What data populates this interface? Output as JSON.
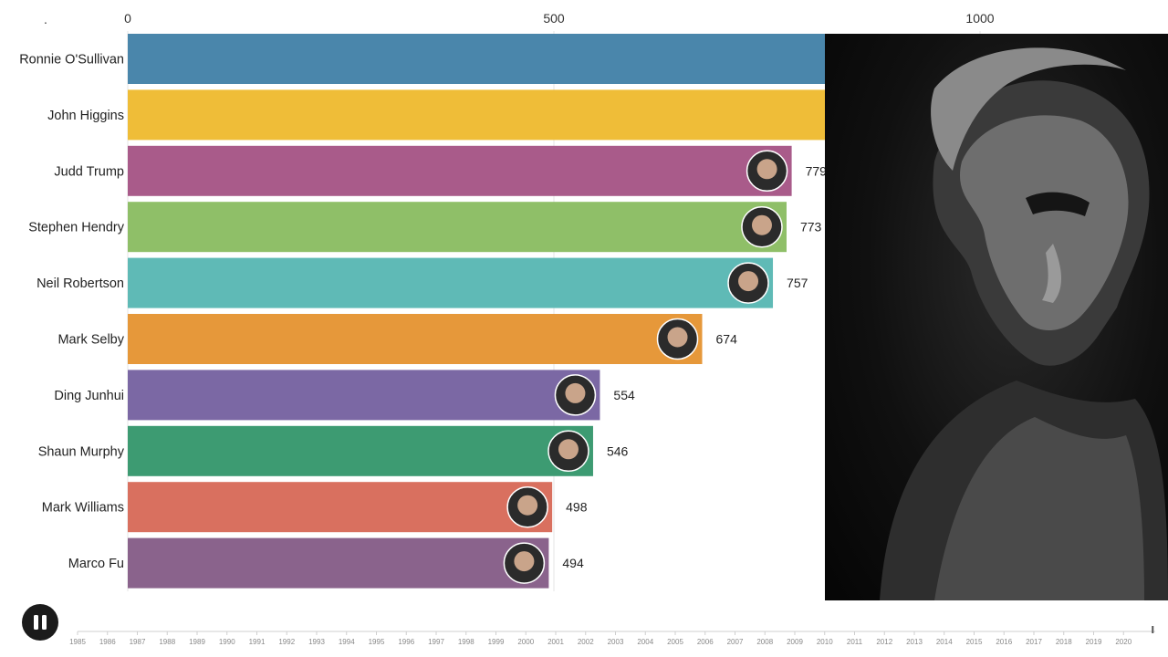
{
  "corner_mark": ".",
  "chart_data": {
    "type": "bar",
    "orientation": "horizontal",
    "xlim": [
      0,
      1300
    ],
    "x_ticks": [
      0,
      500,
      1000
    ],
    "x_tick_labels": [
      "0",
      "500",
      "1000"
    ],
    "grid": true,
    "categories": [
      "Ronnie O'Sullivan",
      "John Higgins",
      "Judd Trump",
      "Stephen Hendry",
      "Neil Robertson",
      "Mark Selby",
      "Ding Junhui",
      "Shaun Murphy",
      "Mark Williams",
      "Marco Fu"
    ],
    "values": [
      1100,
      940,
      779,
      773,
      757,
      674,
      554,
      546,
      498,
      494
    ],
    "value_labels": [
      "",
      "",
      "779",
      "773",
      "757",
      "674",
      "554",
      "546",
      "498",
      "494"
    ],
    "colors": [
      "#4a86ab",
      "#efbd38",
      "#a95b8a",
      "#8fbf68",
      "#5fbab6",
      "#e6983a",
      "#7b68a4",
      "#3d9b72",
      "#d9705f",
      "#8a638c"
    ],
    "timeline": {
      "years": [
        "1985",
        "1986",
        "1987",
        "1988",
        "1989",
        "1990",
        "1991",
        "1992",
        "1993",
        "1994",
        "1995",
        "1996",
        "1997",
        "1998",
        "1999",
        "2000",
        "2001",
        "2002",
        "2003",
        "2004",
        "2005",
        "2006",
        "2007",
        "2008",
        "2009",
        "2010",
        "2011",
        "2012",
        "2013",
        "2014",
        "2015",
        "2016",
        "2017",
        "2018",
        "2019",
        "2020"
      ],
      "current": "2020"
    }
  },
  "controls": {
    "play_state": "playing",
    "pause_icon": "pause-icon"
  },
  "portrait": {
    "icon": "portrait-image"
  }
}
